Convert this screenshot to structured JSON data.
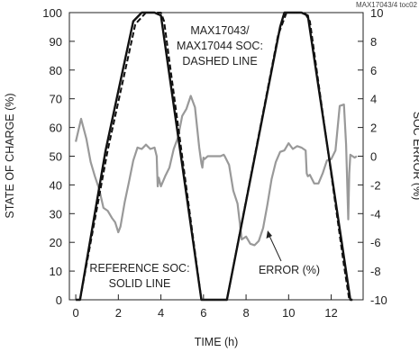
{
  "chart_data": {
    "type": "line",
    "id_tag": "MAX17043/4 toc02",
    "xlabel": "TIME (h)",
    "ylabel": "STATE OF CHARGE (%)",
    "y2label": "SOC ERROR (%)",
    "xlim": [
      -0.3,
      13.5
    ],
    "ylim": [
      0,
      100
    ],
    "y2lim": [
      -10,
      10
    ],
    "x_ticks": [
      0,
      2,
      4,
      6,
      8,
      10,
      12
    ],
    "y_ticks": [
      0,
      10,
      20,
      30,
      40,
      50,
      60,
      70,
      80,
      90,
      100
    ],
    "y2_ticks": [
      -10,
      -8,
      -6,
      -4,
      -2,
      0,
      2,
      4,
      6,
      8,
      10
    ],
    "grid": false,
    "series": [
      {
        "axis": "left",
        "style": "solid",
        "color": "#111111",
        "x": [
          0,
          0.2,
          1.4,
          2.7,
          3.1,
          3.7,
          4.0,
          5.9,
          6.0,
          6.9,
          7.1,
          9.6,
          9.8,
          10.6,
          10.9,
          12.9,
          13.0
        ],
        "y": [
          0,
          0,
          52,
          97,
          100,
          100,
          99,
          0,
          0,
          0,
          0,
          95,
          100,
          100,
          99,
          0,
          0
        ]
      },
      {
        "axis": "left",
        "style": "dashed",
        "color": "#111111",
        "x": [
          0.2,
          1.5,
          2.8,
          3.3,
          4.0,
          4.15,
          5.9,
          7.1,
          9.5,
          9.9,
          10.75,
          11.0,
          12.6,
          12.85
        ],
        "y": [
          0,
          52,
          96,
          100,
          100,
          97,
          0,
          0,
          92,
          100,
          100,
          97,
          12,
          0
        ]
      },
      {
        "axis": "right",
        "style": "solid",
        "color": "#999999",
        "x": [
          0,
          0.25,
          0.5,
          0.7,
          0.9,
          1.1,
          1.3,
          1.5,
          1.7,
          1.85,
          2.0,
          2.1,
          2.3,
          2.5,
          2.7,
          2.9,
          3.1,
          3.3,
          3.5,
          3.7,
          3.8,
          3.85,
          3.9,
          4.0,
          4.2,
          4.4,
          4.6,
          4.8,
          5.0,
          5.2,
          5.4,
          5.6,
          5.8,
          5.9,
          5.95,
          6.0,
          6.05,
          6.2,
          6.5,
          6.8,
          6.95,
          7.0,
          7.2,
          7.4,
          7.6,
          7.8,
          8.0,
          8.2,
          8.4,
          8.6,
          8.8,
          9.0,
          9.2,
          9.4,
          9.6,
          9.8,
          10.0,
          10.2,
          10.4,
          10.6,
          10.8,
          10.85,
          10.9,
          11.0,
          11.2,
          11.4,
          11.6,
          11.8,
          12.0,
          12.2,
          12.4,
          12.6,
          12.7,
          12.8,
          12.85,
          12.9,
          13.0,
          13.1,
          13.2
        ],
        "y": [
          1.0,
          2.6,
          1.2,
          -0.4,
          -1.4,
          -2.3,
          -3.6,
          -3.8,
          -4.3,
          -4.6,
          -5.3,
          -4.9,
          -3.2,
          -1.8,
          -0.3,
          0.6,
          0.5,
          0.8,
          0.5,
          0.6,
          0.0,
          -2.1,
          -1.5,
          -2.1,
          -1.4,
          -0.8,
          0.5,
          1.3,
          2.8,
          3.3,
          4.2,
          3.4,
          0.6,
          -0.5,
          -0.8,
          -0.1,
          -0.2,
          0.0,
          0.0,
          0.0,
          0.1,
          0.0,
          -0.6,
          -2.4,
          -3.3,
          -5.8,
          -5.6,
          -6.1,
          -6.2,
          -5.9,
          -5.0,
          -3.4,
          -1.6,
          -0.4,
          0.3,
          0.4,
          0.9,
          0.5,
          0.7,
          0.6,
          0.4,
          -1.2,
          -1.4,
          -1.3,
          -1.9,
          -1.9,
          -1.2,
          -0.3,
          -0.2,
          0.4,
          3.5,
          3.6,
          0.8,
          -4.4,
          -1.2,
          0.1,
          0.0,
          -0.1,
          0.0
        ]
      }
    ],
    "annotations": {
      "top_line1": "MAX17043/",
      "top_line2": "MAX17044 SOC:",
      "top_line3": "DASHED LINE",
      "ref_line1": "REFERENCE SOC:",
      "ref_line2": "SOLID LINE",
      "error": "ERROR (%)"
    }
  }
}
